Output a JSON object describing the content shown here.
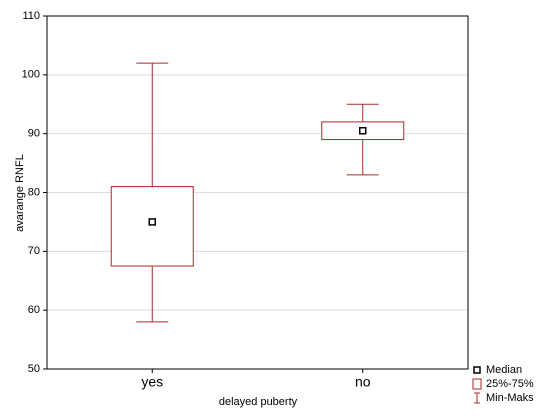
{
  "chart_data": {
    "type": "box",
    "x_label": "delayed puberty",
    "y_label": "avarange RNFL",
    "categories": [
      "yes",
      "no"
    ],
    "min": [
      58,
      83
    ],
    "q1": [
      67.5,
      89
    ],
    "median": [
      75,
      90.5
    ],
    "q3": [
      81,
      92
    ],
    "max": [
      102,
      95
    ],
    "color": "#a52a2a",
    "ylim": [
      50,
      110
    ],
    "yticks": [
      50,
      60,
      70,
      80,
      90,
      100,
      110
    ],
    "grid": true,
    "legend": [
      "Median",
      "25%-75%",
      "Min-Maks"
    ],
    "legend_position": "bottom-right"
  }
}
